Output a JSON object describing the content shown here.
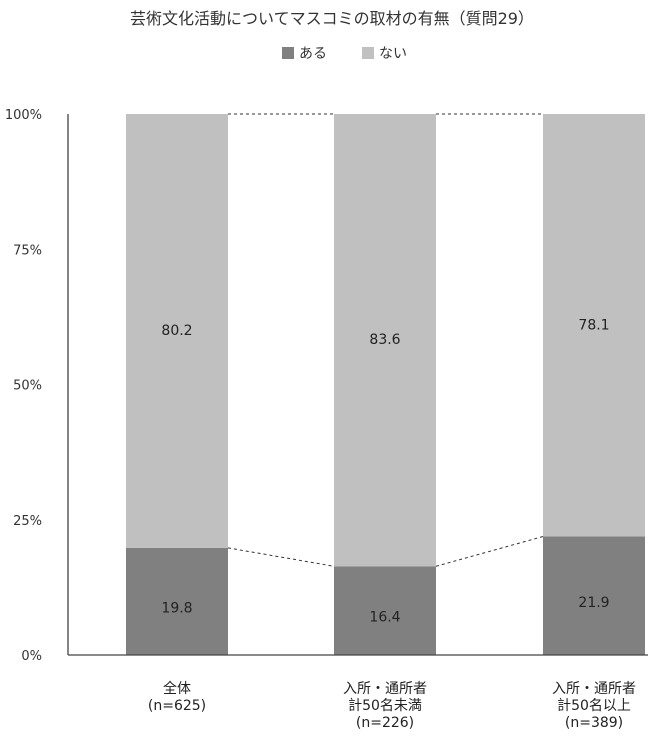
{
  "chart_data": {
    "type": "bar",
    "stacked": true,
    "percent": true,
    "title": "芸術文化活動についてマスコミの取材の有無（質問29）",
    "categories": [
      [
        "全体",
        "(n=625)"
      ],
      [
        "入所・通所者",
        "計50名未満",
        "(n=226)"
      ],
      [
        "入所・通所者",
        "計50名以上",
        "(n=389)"
      ]
    ],
    "series": [
      {
        "name": "ある",
        "values": [
          19.8,
          16.4,
          21.9
        ],
        "color": "#808080"
      },
      {
        "name": "ない",
        "values": [
          80.2,
          83.6,
          78.1
        ],
        "color": "#c0c0c0"
      }
    ],
    "yticks": [
      "0%",
      "25%",
      "50%",
      "75%",
      "100%"
    ],
    "ylim": [
      0,
      100
    ],
    "legend_position": "top",
    "grid": false
  }
}
